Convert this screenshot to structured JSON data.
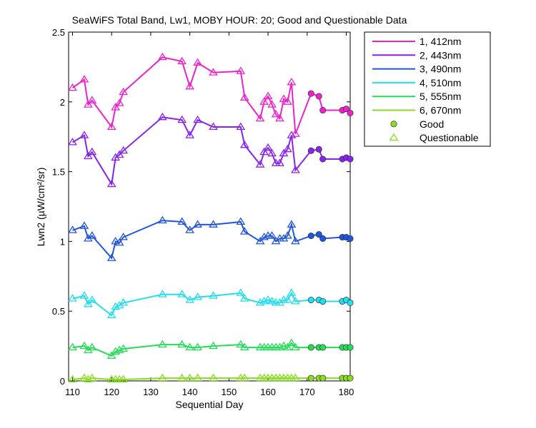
{
  "chart_data": {
    "type": "line",
    "title": "SeaWiFS Total Band, Lw1, MOBY HOUR: 20;  Good and Questionable Data",
    "xlabel": "Sequential Day",
    "ylabel": "Lwn2 (µW/cm²/sr)",
    "xlim": [
      109,
      181
    ],
    "ylim": [
      0,
      2.5
    ],
    "xticks": [
      110,
      120,
      130,
      140,
      150,
      160,
      170,
      180
    ],
    "yticks": [
      0,
      0.5,
      1,
      1.5,
      2,
      2.5
    ],
    "ytick_labels": [
      "0",
      "0.5",
      "1",
      "1.5",
      "2",
      "2.5"
    ],
    "grid": false,
    "legend_position": "outside-top-right",
    "x": [
      110,
      113,
      114,
      115,
      120,
      121,
      122,
      123,
      133,
      138,
      140,
      142,
      146,
      153,
      154,
      158,
      159,
      160,
      161,
      162,
      163,
      164,
      165,
      166,
      167,
      171,
      173,
      174,
      179,
      180,
      181
    ],
    "quality": [
      "Q",
      "Q",
      "Q",
      "Q",
      "Q",
      "Q",
      "Q",
      "Q",
      "Q",
      "Q",
      "Q",
      "Q",
      "Q",
      "Q",
      "Q",
      "Q",
      "Q",
      "Q",
      "Q",
      "Q",
      "Q",
      "Q",
      "Q",
      "Q",
      "Q",
      "G",
      "G",
      "G",
      "G",
      "G",
      "G"
    ],
    "series": [
      {
        "name": "1, 412nm",
        "color": "#ee22cc",
        "values": [
          2.1,
          2.16,
          1.98,
          2.01,
          1.82,
          1.96,
          1.99,
          2.07,
          2.32,
          2.29,
          2.11,
          2.28,
          2.21,
          2.22,
          2.03,
          1.88,
          2.0,
          2.04,
          1.98,
          1.91,
          1.88,
          2.02,
          2.0,
          2.14,
          1.77,
          2.06,
          2.04,
          1.94,
          1.94,
          1.95,
          1.92
        ]
      },
      {
        "name": "2, 443nm",
        "color": "#8822ee",
        "values": [
          1.71,
          1.76,
          1.61,
          1.64,
          1.41,
          1.6,
          1.62,
          1.65,
          1.89,
          1.87,
          1.76,
          1.87,
          1.82,
          1.82,
          1.69,
          1.55,
          1.64,
          1.67,
          1.63,
          1.56,
          1.56,
          1.63,
          1.66,
          1.76,
          1.51,
          1.65,
          1.66,
          1.59,
          1.59,
          1.6,
          1.59
        ]
      },
      {
        "name": "3, 490nm",
        "color": "#2255dd",
        "values": [
          1.08,
          1.11,
          1.02,
          1.04,
          0.88,
          1.0,
          0.99,
          1.03,
          1.15,
          1.14,
          1.08,
          1.12,
          1.12,
          1.14,
          1.07,
          1.0,
          1.03,
          1.04,
          1.04,
          1.0,
          1.02,
          1.02,
          1.04,
          1.12,
          1.0,
          1.04,
          1.05,
          1.02,
          1.03,
          1.03,
          1.02
        ]
      },
      {
        "name": "4, 510nm",
        "color": "#22ddee",
        "values": [
          0.59,
          0.61,
          0.55,
          0.58,
          0.47,
          0.53,
          0.54,
          0.56,
          0.62,
          0.62,
          0.58,
          0.6,
          0.61,
          0.63,
          0.59,
          0.56,
          0.57,
          0.58,
          0.57,
          0.56,
          0.56,
          0.58,
          0.58,
          0.63,
          0.57,
          0.58,
          0.58,
          0.57,
          0.57,
          0.58,
          0.56
        ]
      },
      {
        "name": "5, 555nm",
        "color": "#22dd55",
        "values": [
          0.24,
          0.25,
          0.22,
          0.24,
          0.18,
          0.21,
          0.22,
          0.23,
          0.26,
          0.26,
          0.24,
          0.24,
          0.25,
          0.26,
          0.24,
          0.24,
          0.24,
          0.24,
          0.24,
          0.24,
          0.24,
          0.25,
          0.24,
          0.27,
          0.24,
          0.24,
          0.24,
          0.24,
          0.24,
          0.24,
          0.24
        ]
      },
      {
        "name": "6, 670nm",
        "color": "#88dd22",
        "values": [
          0.01,
          0.02,
          0.01,
          0.02,
          0.01,
          0.01,
          0.01,
          0.01,
          0.02,
          0.02,
          0.02,
          0.02,
          0.02,
          0.02,
          0.02,
          0.02,
          0.02,
          0.02,
          0.02,
          0.02,
          0.02,
          0.02,
          0.02,
          0.02,
          0.02,
          0.02,
          0.02,
          0.02,
          0.02,
          0.02,
          0.02
        ]
      }
    ],
    "markers": [
      {
        "name": "Good",
        "shape": "circle",
        "color": "#88dd22"
      },
      {
        "name": "Questionable",
        "shape": "triangle",
        "color": "#88dd22"
      }
    ]
  }
}
